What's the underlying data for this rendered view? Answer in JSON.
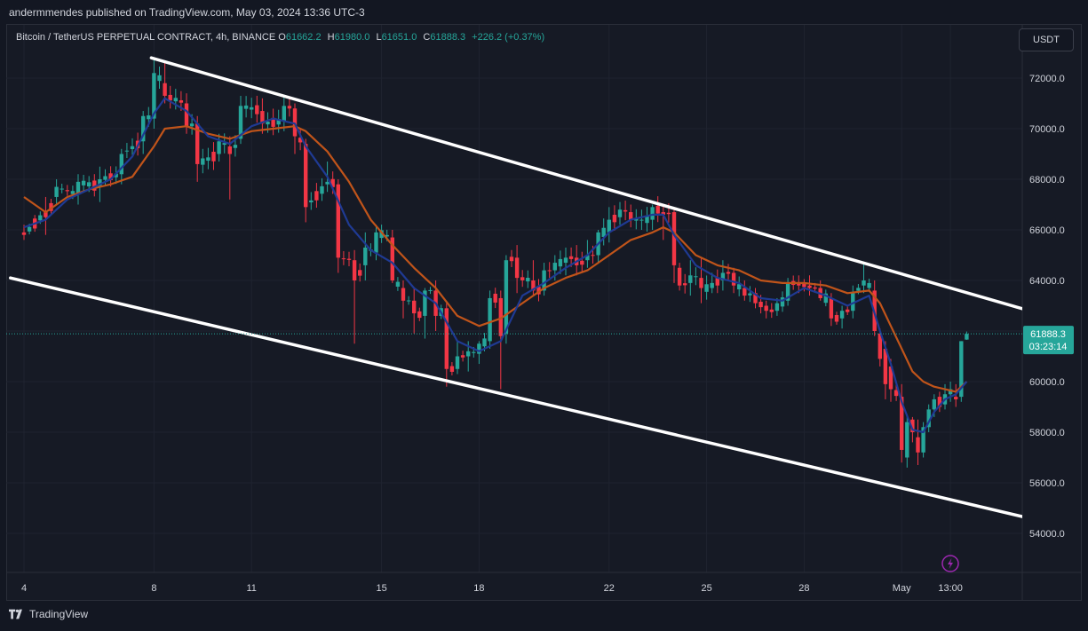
{
  "header": {
    "published": "andermmendes published on TradingView.com, May 03, 2024 13:36 UTC-3"
  },
  "legend": {
    "symbol": "Bitcoin / TetherUS PERPETUAL CONTRACT, 4h, BINANCE",
    "o_label": "O",
    "o_value": "61662.2",
    "h_label": "H",
    "h_value": "61980.0",
    "l_label": "L",
    "l_value": "61651.0",
    "c_label": "C",
    "c_value": "61888.3",
    "change": "+226.2 (+0.37%)"
  },
  "toolbar": {
    "currency": "USDT"
  },
  "price_tag": {
    "price": "61888.3",
    "countdown": "03:23:14"
  },
  "footer": {
    "brand": "TradingView"
  },
  "colors": {
    "up": "#26a69a",
    "down": "#f23645",
    "ema_fast": "#1f3a93",
    "ema_slow": "#c0541a",
    "channel": "#ffffff",
    "flash": "#9c27b0"
  },
  "chart_data": {
    "type": "candlestick",
    "title": "",
    "xlabel": "",
    "ylabel": "",
    "ylim": [
      53200,
      73000
    ],
    "y_ticks": [
      "72000.0",
      "70000.0",
      "68000.0",
      "66000.0",
      "64000.0",
      "62000.0",
      "60000.0",
      "58000.0",
      "56000.0",
      "54000.0"
    ],
    "x_ticks": [
      {
        "label": "4",
        "t": 0
      },
      {
        "label": "8",
        "t": 24
      },
      {
        "label": "11",
        "t": 42
      },
      {
        "label": "15",
        "t": 66
      },
      {
        "label": "18",
        "t": 84
      },
      {
        "label": "22",
        "t": 108
      },
      {
        "label": "25",
        "t": 126
      },
      {
        "label": "28",
        "t": 144
      },
      {
        "label": "May",
        "t": 162
      },
      {
        "label": "13:00",
        "t": 171
      }
    ],
    "grid": true,
    "last_price": 61888.3,
    "ohlc_anchors": [
      [
        0,
        65900,
        66200,
        65600,
        65800
      ],
      [
        4,
        66700,
        67300,
        65800,
        66500
      ],
      [
        6,
        67300,
        68000,
        67000,
        67700
      ],
      [
        10,
        67400,
        68200,
        67000,
        67900
      ],
      [
        14,
        67700,
        68500,
        67100,
        68000
      ],
      [
        18,
        68200,
        69200,
        67800,
        69000
      ],
      [
        22,
        69500,
        70700,
        69000,
        70500
      ],
      [
        24,
        70400,
        72800,
        70000,
        72200
      ],
      [
        26,
        71800,
        72600,
        71000,
        71300
      ],
      [
        30,
        71000,
        71400,
        69800,
        70100
      ],
      [
        32,
        70200,
        70500,
        67900,
        68600
      ],
      [
        36,
        69000,
        69800,
        68700,
        69500
      ],
      [
        38,
        69300,
        69700,
        67200,
        69000
      ],
      [
        40,
        69600,
        71300,
        69400,
        70900
      ],
      [
        44,
        70700,
        71200,
        69800,
        70200
      ],
      [
        48,
        70300,
        71300,
        69900,
        70900
      ],
      [
        50,
        70800,
        71000,
        69000,
        69700
      ],
      [
        52,
        69400,
        69600,
        66300,
        66900
      ],
      [
        56,
        67800,
        68700,
        67500,
        67900
      ],
      [
        58,
        67800,
        68000,
        64300,
        64900
      ],
      [
        61,
        64800,
        65200,
        61500,
        64000
      ],
      [
        63,
        64600,
        65900,
        64000,
        65300
      ],
      [
        65,
        65100,
        66200,
        64800,
        65900
      ],
      [
        68,
        65700,
        66000,
        63900,
        64000
      ],
      [
        70,
        63700,
        64000,
        62500,
        63200
      ],
      [
        72,
        63200,
        63700,
        61900,
        62700
      ],
      [
        74,
        62600,
        63700,
        61700,
        63600
      ],
      [
        76,
        63600,
        64000,
        62000,
        62600
      ],
      [
        78,
        62900,
        63100,
        59800,
        60500
      ],
      [
        80,
        60500,
        61600,
        60300,
        61000
      ],
      [
        82,
        61000,
        61600,
        60400,
        61200
      ],
      [
        84,
        61100,
        61600,
        60700,
        61500
      ],
      [
        86,
        61600,
        63600,
        61300,
        63300
      ],
      [
        88,
        63300,
        63600,
        59700,
        61800
      ],
      [
        89,
        61900,
        65000,
        61500,
        64800
      ],
      [
        91,
        64900,
        65400,
        63500,
        64100
      ],
      [
        94,
        64000,
        64800,
        63400,
        63600
      ],
      [
        96,
        63600,
        64700,
        63400,
        64400
      ],
      [
        98,
        64400,
        65000,
        64000,
        64700
      ],
      [
        100,
        64700,
        65300,
        64200,
        64900
      ],
      [
        102,
        64900,
        65400,
        64200,
        64600
      ],
      [
        104,
        64800,
        65600,
        64500,
        65000
      ],
      [
        106,
        65000,
        66000,
        64700,
        65900
      ],
      [
        108,
        65900,
        66900,
        65500,
        66400
      ],
      [
        110,
        66500,
        67100,
        66200,
        66800
      ],
      [
        112,
        66700,
        67000,
        66100,
        66400
      ],
      [
        114,
        66400,
        66800,
        66000,
        66400
      ],
      [
        116,
        66400,
        67000,
        66000,
        66900
      ],
      [
        118,
        66700,
        67000,
        65600,
        66600
      ],
      [
        120,
        66700,
        66800,
        63900,
        64600
      ],
      [
        121,
        64500,
        64700,
        63600,
        63800
      ],
      [
        123,
        63900,
        64800,
        63400,
        64200
      ],
      [
        125,
        64100,
        64900,
        63100,
        63700
      ],
      [
        127,
        63700,
        64300,
        63500,
        63900
      ],
      [
        129,
        64000,
        64800,
        63600,
        64300
      ],
      [
        131,
        64300,
        64500,
        63500,
        63800
      ],
      [
        133,
        63700,
        64000,
        63200,
        63400
      ],
      [
        135,
        63500,
        63700,
        62900,
        63100
      ],
      [
        137,
        63000,
        63200,
        62500,
        62800
      ],
      [
        139,
        62800,
        63300,
        62600,
        63100
      ],
      [
        141,
        63200,
        64100,
        63000,
        63900
      ],
      [
        143,
        63900,
        64200,
        63500,
        63800
      ],
      [
        145,
        63800,
        64200,
        63400,
        63700
      ],
      [
        147,
        63700,
        64000,
        63200,
        63300
      ],
      [
        149,
        63300,
        63500,
        62200,
        62500
      ],
      [
        151,
        62500,
        63000,
        62100,
        62800
      ],
      [
        153,
        62800,
        63800,
        62500,
        63500
      ],
      [
        155,
        63800,
        64700,
        63500,
        64000
      ],
      [
        157,
        63600,
        64000,
        61800,
        62000
      ],
      [
        158,
        61900,
        62100,
        60600,
        60900
      ],
      [
        159,
        61300,
        61600,
        59300,
        59900
      ],
      [
        160,
        60600,
        60900,
        59200,
        59700
      ],
      [
        162,
        59400,
        59900,
        56800,
        57300
      ],
      [
        163,
        57000,
        58700,
        56600,
        58400
      ],
      [
        164,
        58500,
        58600,
        57600,
        58000
      ],
      [
        165,
        57800,
        58500,
        56700,
        57200
      ],
      [
        166,
        57200,
        58400,
        57000,
        58200
      ],
      [
        167,
        58200,
        59100,
        58000,
        58900
      ],
      [
        168,
        58900,
        59500,
        58600,
        59300
      ],
      [
        169,
        59400,
        59600,
        58800,
        59000
      ],
      [
        170,
        59100,
        59900,
        58900,
        59500
      ],
      [
        171,
        59500,
        60000,
        59200,
        59700
      ],
      [
        172,
        59400,
        59900,
        59000,
        59300
      ],
      [
        173,
        59400,
        61600,
        59200,
        61600
      ],
      [
        174,
        61662.2,
        61980.0,
        61651.0,
        61888.3
      ]
    ],
    "ema_fast": [
      [
        0,
        66100
      ],
      [
        4,
        66400
      ],
      [
        8,
        67200
      ],
      [
        12,
        67600
      ],
      [
        16,
        68000
      ],
      [
        20,
        68900
      ],
      [
        24,
        70600
      ],
      [
        26,
        71200
      ],
      [
        30,
        70700
      ],
      [
        34,
        69700
      ],
      [
        38,
        69400
      ],
      [
        42,
        70100
      ],
      [
        46,
        70400
      ],
      [
        50,
        70200
      ],
      [
        52,
        69300
      ],
      [
        56,
        68100
      ],
      [
        60,
        66200
      ],
      [
        64,
        65200
      ],
      [
        68,
        64700
      ],
      [
        72,
        63700
      ],
      [
        76,
        63100
      ],
      [
        80,
        61600
      ],
      [
        84,
        61200
      ],
      [
        88,
        61600
      ],
      [
        92,
        63400
      ],
      [
        96,
        63900
      ],
      [
        100,
        64500
      ],
      [
        104,
        65000
      ],
      [
        108,
        65900
      ],
      [
        112,
        66400
      ],
      [
        116,
        66600
      ],
      [
        118,
        66600
      ],
      [
        120,
        65800
      ],
      [
        124,
        64600
      ],
      [
        128,
        64100
      ],
      [
        132,
        63900
      ],
      [
        136,
        63300
      ],
      [
        140,
        63200
      ],
      [
        144,
        63700
      ],
      [
        148,
        63400
      ],
      [
        152,
        63000
      ],
      [
        156,
        63400
      ],
      [
        158,
        62000
      ],
      [
        160,
        60700
      ],
      [
        162,
        59200
      ],
      [
        164,
        58100
      ],
      [
        166,
        58000
      ],
      [
        168,
        58800
      ],
      [
        170,
        59300
      ],
      [
        172,
        59500
      ],
      [
        174,
        60000
      ]
    ],
    "ema_slow": [
      [
        0,
        67300
      ],
      [
        4,
        66700
      ],
      [
        8,
        67300
      ],
      [
        12,
        67600
      ],
      [
        16,
        67800
      ],
      [
        20,
        68100
      ],
      [
        24,
        69300
      ],
      [
        26,
        70000
      ],
      [
        30,
        70100
      ],
      [
        34,
        69800
      ],
      [
        38,
        69600
      ],
      [
        42,
        69900
      ],
      [
        46,
        70000
      ],
      [
        50,
        70100
      ],
      [
        52,
        69900
      ],
      [
        56,
        69100
      ],
      [
        60,
        67900
      ],
      [
        64,
        66400
      ],
      [
        68,
        65400
      ],
      [
        72,
        64500
      ],
      [
        76,
        63700
      ],
      [
        80,
        62600
      ],
      [
        84,
        62200
      ],
      [
        88,
        62500
      ],
      [
        92,
        63100
      ],
      [
        96,
        63700
      ],
      [
        100,
        64100
      ],
      [
        104,
        64400
      ],
      [
        108,
        65000
      ],
      [
        112,
        65600
      ],
      [
        116,
        65900
      ],
      [
        118,
        66100
      ],
      [
        120,
        65900
      ],
      [
        124,
        65000
      ],
      [
        128,
        64600
      ],
      [
        132,
        64400
      ],
      [
        136,
        64000
      ],
      [
        140,
        63900
      ],
      [
        144,
        63900
      ],
      [
        148,
        63800
      ],
      [
        152,
        63500
      ],
      [
        156,
        63600
      ],
      [
        158,
        63100
      ],
      [
        160,
        62200
      ],
      [
        162,
        61300
      ],
      [
        164,
        60400
      ],
      [
        166,
        60000
      ],
      [
        168,
        59800
      ],
      [
        170,
        59700
      ],
      [
        172,
        59600
      ],
      [
        174,
        60000
      ]
    ],
    "trend_lines": [
      {
        "name": "upper channel",
        "from": [
          23.5,
          72800
        ],
        "to": [
          189.5,
          62560
        ]
      },
      {
        "name": "lower channel",
        "from": [
          -2.5,
          64100
        ],
        "to": [
          189.5,
          54400
        ]
      }
    ]
  }
}
